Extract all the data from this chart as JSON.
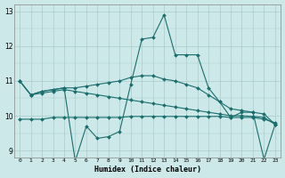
{
  "title": "",
  "xlabel": "Humidex (Indice chaleur)",
  "ylabel": "",
  "bg_color": "#cce8e8",
  "grid_color": "#aacccc",
  "line_color": "#1a6e6e",
  "xlim": [
    -0.5,
    23.5
  ],
  "ylim": [
    8.8,
    13.2
  ],
  "yticks": [
    9,
    10,
    11,
    12,
    13
  ],
  "xticks": [
    0,
    1,
    2,
    3,
    4,
    5,
    6,
    7,
    8,
    9,
    10,
    11,
    12,
    13,
    14,
    15,
    16,
    17,
    18,
    19,
    20,
    21,
    22,
    23
  ],
  "series": [
    {
      "x": [
        0,
        1,
        2,
        3,
        4,
        5,
        6,
        7,
        8,
        9,
        10,
        11,
        12,
        13,
        14,
        15,
        16,
        17,
        18,
        19,
        20,
        21,
        22,
        23
      ],
      "y": [
        11.0,
        10.6,
        10.7,
        10.75,
        10.8,
        8.7,
        9.7,
        9.35,
        9.4,
        9.55,
        10.9,
        12.2,
        12.25,
        12.9,
        11.75,
        11.75,
        11.75,
        10.8,
        10.4,
        9.95,
        10.1,
        10.1,
        8.75,
        9.75
      ]
    },
    {
      "x": [
        0,
        1,
        2,
        3,
        4,
        5,
        6,
        7,
        8,
        9,
        10,
        11,
        12,
        13,
        14,
        15,
        16,
        17,
        18,
        19,
        20,
        21,
        22,
        23
      ],
      "y": [
        11.0,
        10.6,
        10.7,
        10.75,
        10.8,
        10.8,
        10.85,
        10.9,
        10.95,
        11.0,
        11.1,
        11.15,
        11.15,
        11.05,
        11.0,
        10.9,
        10.8,
        10.6,
        10.4,
        10.2,
        10.15,
        10.1,
        10.05,
        9.75
      ]
    },
    {
      "x": [
        0,
        1,
        2,
        3,
        4,
        5,
        6,
        7,
        8,
        9,
        10,
        11,
        12,
        13,
        14,
        15,
        16,
        17,
        18,
        19,
        20,
        21,
        22,
        23
      ],
      "y": [
        9.9,
        9.9,
        9.9,
        9.95,
        9.95,
        9.95,
        9.95,
        9.95,
        9.95,
        9.95,
        9.98,
        9.98,
        9.98,
        9.98,
        9.98,
        9.98,
        9.98,
        9.98,
        9.98,
        9.95,
        9.95,
        9.95,
        9.9,
        9.8
      ]
    },
    {
      "x": [
        0,
        1,
        2,
        3,
        4,
        5,
        6,
        7,
        8,
        9,
        10,
        11,
        12,
        13,
        14,
        15,
        16,
        17,
        18,
        19,
        20,
        21,
        22,
        23
      ],
      "y": [
        11.0,
        10.6,
        10.65,
        10.7,
        10.75,
        10.7,
        10.65,
        10.6,
        10.55,
        10.5,
        10.45,
        10.4,
        10.35,
        10.3,
        10.25,
        10.2,
        10.15,
        10.1,
        10.05,
        10.0,
        10.0,
        9.98,
        9.95,
        9.75
      ]
    }
  ]
}
